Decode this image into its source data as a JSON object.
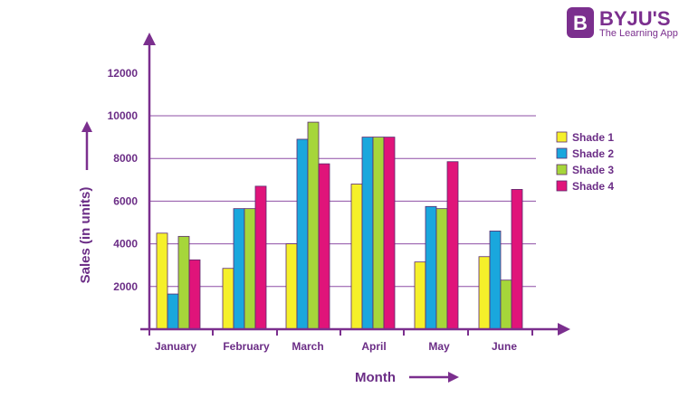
{
  "brand": {
    "name": "BYJU'S",
    "tagline": "The Learning App",
    "logo_letter": "B",
    "color": "#7b2f8e"
  },
  "colors": {
    "axis": "#7b2f8e",
    "text": "#6b2d86",
    "grid": "#8e4fa5"
  },
  "chart_data": {
    "type": "bar",
    "title": "",
    "xlabel": "Month",
    "ylabel": "Sales (in units)",
    "categories": [
      "January",
      "February",
      "March",
      "April",
      "May",
      "June"
    ],
    "yticks": [
      2000,
      4000,
      6000,
      8000,
      10000,
      12000
    ],
    "ylim": [
      0,
      12000
    ],
    "grid": true,
    "legend_position": "right",
    "series": [
      {
        "name": "Shade 1",
        "color": "#f5f02a",
        "values": [
          4500,
          2850,
          4000,
          6800,
          3150,
          3400
        ]
      },
      {
        "name": "Shade 2",
        "color": "#1aa7dd",
        "values": [
          1650,
          5650,
          8900,
          9000,
          5750,
          4600
        ]
      },
      {
        "name": "Shade 3",
        "color": "#a6d63a",
        "values": [
          4350,
          5650,
          9700,
          9000,
          5650,
          2300
        ]
      },
      {
        "name": "Shade 4",
        "color": "#e0147a",
        "values": [
          3250,
          6700,
          7750,
          9000,
          7850,
          6550
        ]
      }
    ]
  }
}
